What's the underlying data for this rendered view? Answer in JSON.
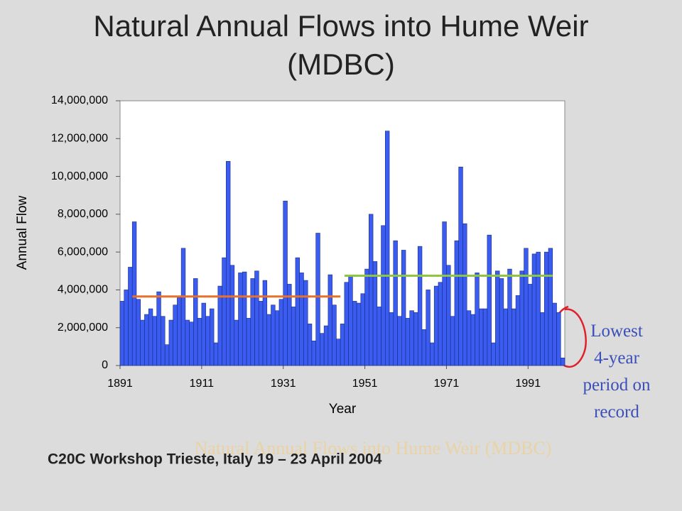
{
  "chart_data": {
    "type": "bar",
    "title": "Natural Annual Flows into Hume Weir (MDBC)",
    "y_label": "Annual Flow",
    "x_label": "Year",
    "footer": "C20C Workshop Trieste, Italy 19 – 23 April 2004",
    "watermark": "Natural Annual Flows into Hume Weir (MDBC)",
    "annotation": "Lowest 4-year period on record",
    "color": "#3a5cf0",
    "x": [
      1891,
      1892,
      1893,
      1894,
      1895,
      1896,
      1897,
      1898,
      1899,
      1900,
      1901,
      1902,
      1903,
      1904,
      1905,
      1906,
      1907,
      1908,
      1909,
      1910,
      1911,
      1912,
      1913,
      1914,
      1915,
      1916,
      1917,
      1918,
      1919,
      1920,
      1921,
      1922,
      1923,
      1924,
      1925,
      1926,
      1927,
      1928,
      1929,
      1930,
      1931,
      1932,
      1933,
      1934,
      1935,
      1936,
      1937,
      1938,
      1939,
      1940,
      1941,
      1942,
      1943,
      1944,
      1945,
      1946,
      1947,
      1948,
      1949,
      1950,
      1951,
      1952,
      1953,
      1954,
      1955,
      1956,
      1957,
      1958,
      1959,
      1960,
      1961,
      1962,
      1963,
      1964,
      1965,
      1966,
      1967,
      1968,
      1969,
      1970,
      1971,
      1972,
      1973,
      1974,
      1975,
      1976,
      1977,
      1978,
      1979,
      1980,
      1981,
      1982,
      1983,
      1984,
      1985,
      1986,
      1987,
      1988,
      1989,
      1990,
      1991,
      1992,
      1993,
      1994,
      1995,
      1996,
      1997,
      1998,
      1999
    ],
    "values": [
      3400000,
      4000000,
      5200000,
      7600000,
      3500000,
      2400000,
      2700000,
      3000000,
      2600000,
      3900000,
      2600000,
      1100000,
      2400000,
      3200000,
      3600000,
      6200000,
      2400000,
      2300000,
      4600000,
      2500000,
      3300000,
      2600000,
      3000000,
      1200000,
      4200000,
      5700000,
      10800000,
      5300000,
      2400000,
      4900000,
      4950000,
      2500000,
      4600000,
      5000000,
      3400000,
      4500000,
      2700000,
      3200000,
      2900000,
      3500000,
      8700000,
      4300000,
      3100000,
      5700000,
      4900000,
      4500000,
      2200000,
      1300000,
      7000000,
      1700000,
      2100000,
      4800000,
      3200000,
      1400000,
      2200000,
      4400000,
      4700000,
      3400000,
      3300000,
      3800000,
      5100000,
      8000000,
      5500000,
      3100000,
      7400000,
      12400000,
      2800000,
      6600000,
      2600000,
      6100000,
      2500000,
      2900000,
      2800000,
      6300000,
      1900000,
      4000000,
      1200000,
      4200000,
      4400000,
      7600000,
      5300000,
      2600000,
      6600000,
      10500000,
      7500000,
      2900000,
      2700000,
      4900000,
      3000000,
      3000000,
      6900000,
      1200000,
      5000000,
      4600000,
      3000000,
      5100000,
      3000000,
      3700000,
      5000000,
      6200000,
      4300000,
      5900000,
      6000000,
      2800000,
      6000000,
      6200000,
      3300000,
      2800000,
      400000
    ],
    "reference_lines": [
      {
        "start": 1894,
        "end": 1945,
        "value": 3650000,
        "color": "#e8702a"
      },
      {
        "start": 1946,
        "end": 1997,
        "value": 4750000,
        "color": "#8dc63f"
      }
    ],
    "xlim": [
      1891,
      2000
    ],
    "xticks": [
      1891,
      1911,
      1931,
      1951,
      1971,
      1991
    ],
    "ylim": [
      0,
      14000000
    ],
    "yticks": [
      0,
      {
        "value": 2000000,
        "label": "2,000,000"
      },
      {
        "value": 4000000,
        "label": "4,000,000"
      },
      {
        "value": 6000000,
        "label": "6,000,000"
      },
      {
        "value": 8000000,
        "label": "8,000,000"
      },
      {
        "value": 10000000,
        "label": "10,000,000"
      },
      {
        "value": 12000000,
        "label": "12,000,000"
      },
      {
        "value": 14000000,
        "label": "14,000,000"
      }
    ]
  }
}
